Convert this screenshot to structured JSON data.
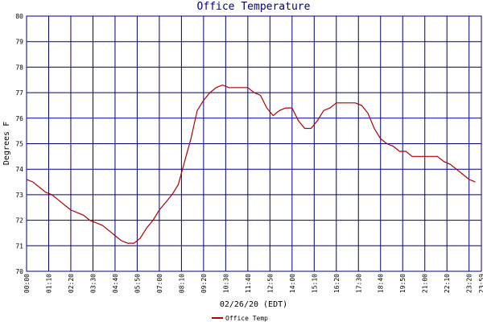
{
  "chart_data": {
    "type": "line",
    "title": "Office Temperature",
    "x_label": "02/26/20 (EDT)",
    "y_label": "Degrees F",
    "x": [
      "00:00",
      "00:20",
      "00:40",
      "01:00",
      "01:20",
      "01:40",
      "02:00",
      "02:20",
      "02:40",
      "03:00",
      "03:20",
      "03:40",
      "04:00",
      "04:20",
      "04:40",
      "05:00",
      "05:20",
      "05:40",
      "06:00",
      "06:20",
      "06:40",
      "07:00",
      "07:20",
      "07:40",
      "08:00",
      "08:20",
      "08:40",
      "09:00",
      "09:20",
      "09:40",
      "10:00",
      "10:20",
      "10:40",
      "11:00",
      "11:20",
      "11:40",
      "12:00",
      "12:20",
      "12:40",
      "13:00",
      "13:20",
      "13:40",
      "14:00",
      "14:20",
      "14:40",
      "15:00",
      "15:20",
      "15:40",
      "16:00",
      "16:20",
      "16:40",
      "17:00",
      "17:20",
      "17:40",
      "18:00",
      "18:20",
      "18:40",
      "19:00",
      "19:20",
      "19:40",
      "20:00",
      "20:20",
      "20:40",
      "21:00",
      "21:20",
      "21:40",
      "22:00",
      "22:20",
      "22:40",
      "23:00",
      "23:20",
      "23:40"
    ],
    "series": [
      {
        "name": "Office Temp",
        "color": "#b00000",
        "values": [
          73.6,
          73.5,
          73.3,
          73.1,
          73.0,
          72.8,
          72.6,
          72.4,
          72.3,
          72.2,
          72.0,
          71.9,
          71.8,
          71.6,
          71.4,
          71.2,
          71.1,
          71.1,
          71.3,
          71.7,
          72.0,
          72.4,
          72.7,
          73.0,
          73.4,
          74.3,
          75.2,
          76.3,
          76.7,
          77.0,
          77.2,
          77.3,
          77.2,
          77.2,
          77.2,
          77.2,
          77.0,
          76.9,
          76.4,
          76.1,
          76.3,
          76.4,
          76.4,
          75.9,
          75.6,
          75.6,
          75.9,
          76.3,
          76.4,
          76.6,
          76.6,
          76.6,
          76.6,
          76.5,
          76.2,
          75.6,
          75.2,
          75.0,
          74.9,
          74.7,
          74.7,
          74.5,
          74.5,
          74.5,
          74.5,
          74.5,
          74.3,
          74.2,
          74.0,
          73.8,
          73.6,
          73.5
        ]
      }
    ],
    "xlim": [
      "00:00",
      "23:59"
    ],
    "xticks": [
      "00:00",
      "01:10",
      "02:20",
      "03:30",
      "04:40",
      "05:50",
      "07:00",
      "08:10",
      "09:20",
      "10:30",
      "11:40",
      "12:50",
      "14:00",
      "15:10",
      "16:20",
      "17:30",
      "18:40",
      "19:50",
      "21:00",
      "22:10",
      "23:20",
      "23:59"
    ],
    "ylim": [
      70,
      80
    ],
    "yticks": [
      70,
      71,
      72,
      73,
      74,
      75,
      76,
      77,
      78,
      79,
      80
    ],
    "grid": true,
    "grid_color": "#000080"
  }
}
